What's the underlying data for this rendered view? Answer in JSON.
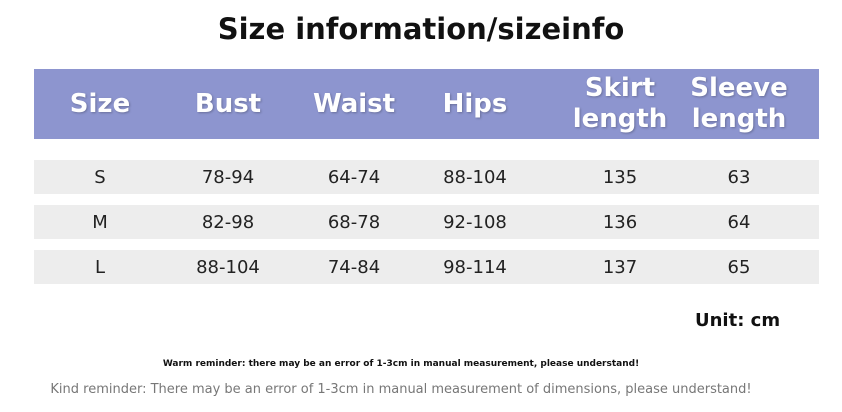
{
  "title": "Size information/sizeinfo",
  "table": {
    "headers": [
      "Size",
      "Bust",
      "Waist",
      "Hips",
      "Skirt length",
      "Sleeve length"
    ],
    "rows": [
      [
        "S",
        "78-94",
        "64-74",
        "88-104",
        "135",
        "63"
      ],
      [
        "M",
        "82-98",
        "68-78",
        "92-108",
        "136",
        "64"
      ],
      [
        "L",
        "88-104",
        "74-84",
        "98-114",
        "137",
        "65"
      ]
    ]
  },
  "unit": "Unit: cm",
  "warm_reminder": "Warm reminder: there may be an error of 1-3cm in manual measurement, please understand!",
  "kind_reminder": "Kind reminder: There may be an error of 1-3cm in manual measurement of dimensions, please understand!"
}
